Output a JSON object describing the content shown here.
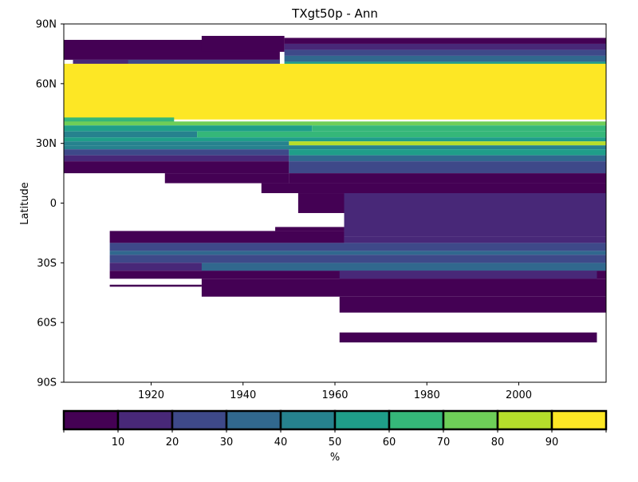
{
  "chart_data": {
    "type": "heatmap",
    "title": "TXgt50p - Ann",
    "xlabel": "",
    "ylabel": "Latitude",
    "xlim": [
      1901,
      2019
    ],
    "ylim": [
      -90,
      90
    ],
    "x_ticks": [
      {
        "value": 1920,
        "label": "1920"
      },
      {
        "value": 1940,
        "label": "1940"
      },
      {
        "value": 1960,
        "label": "1960"
      },
      {
        "value": 1980,
        "label": "1980"
      },
      {
        "value": 2000,
        "label": "2000"
      }
    ],
    "y_ticks": [
      {
        "value": 90,
        "label": "90N"
      },
      {
        "value": 60,
        "label": "60N"
      },
      {
        "value": 30,
        "label": "30N"
      },
      {
        "value": 0,
        "label": "0"
      },
      {
        "value": -30,
        "label": "30S"
      },
      {
        "value": -60,
        "label": "60S"
      },
      {
        "value": -90,
        "label": "90S"
      }
    ],
    "grid": false,
    "colorbar": {
      "label": "%",
      "placement": "bottom",
      "range": [
        0,
        100
      ],
      "bounds": [
        0,
        10,
        20,
        30,
        40,
        50,
        60,
        70,
        80,
        90,
        100
      ],
      "tick_labels": [
        "10",
        "20",
        "30",
        "40",
        "50",
        "60",
        "70",
        "80",
        "90"
      ],
      "colors": [
        "#440154",
        "#482878",
        "#3e4989",
        "#31688e",
        "#26828e",
        "#1f9e89",
        "#35b779",
        "#6ece58",
        "#b5de2b",
        "#fde725"
      ]
    },
    "regions": [
      {
        "lat": [
          72,
          82
        ],
        "years": [
          1901,
          1948
        ],
        "value": 4
      },
      {
        "lat": [
          76,
          84
        ],
        "years": [
          1931,
          1949
        ],
        "value": 4
      },
      {
        "lat": [
          67,
          72
        ],
        "years": [
          1903,
          1948
        ],
        "value": 14
      },
      {
        "lat": [
          67,
          72
        ],
        "years": [
          1915,
          1948
        ],
        "value": 25
      },
      {
        "lat": [
          80,
          83
        ],
        "years": [
          1949,
          2019
        ],
        "value": 6
      },
      {
        "lat": [
          77,
          80
        ],
        "years": [
          1949,
          2019
        ],
        "value": 15
      },
      {
        "lat": [
          74,
          77
        ],
        "years": [
          1949,
          2019
        ],
        "value": 25
      },
      {
        "lat": [
          71,
          74
        ],
        "years": [
          1949,
          2019
        ],
        "value": 35
      },
      {
        "lat": [
          69,
          71
        ],
        "years": [
          1949,
          2019
        ],
        "value": 55
      },
      {
        "lat": [
          67,
          69
        ],
        "years": [
          1901,
          2019
        ],
        "value": 75
      },
      {
        "lat": [
          42,
          70
        ],
        "years": [
          1901,
          2019
        ],
        "value": 95
      },
      {
        "lat": [
          40,
          43
        ],
        "years": [
          1901,
          1925
        ],
        "value": 65
      },
      {
        "lat": [
          39,
          41
        ],
        "years": [
          1901,
          2019
        ],
        "value": 75
      },
      {
        "lat": [
          36,
          39
        ],
        "years": [
          1901,
          1955
        ],
        "value": 55
      },
      {
        "lat": [
          36,
          39
        ],
        "years": [
          1955,
          2019
        ],
        "value": 65
      },
      {
        "lat": [
          33,
          36
        ],
        "years": [
          1901,
          1930
        ],
        "value": 45
      },
      {
        "lat": [
          33,
          36
        ],
        "years": [
          1930,
          2019
        ],
        "value": 65
      },
      {
        "lat": [
          31,
          33
        ],
        "years": [
          1901,
          2019
        ],
        "value": 55
      },
      {
        "lat": [
          29,
          31
        ],
        "years": [
          1901,
          1950
        ],
        "value": 45
      },
      {
        "lat": [
          29,
          31
        ],
        "years": [
          1950,
          2019
        ],
        "value": 85
      },
      {
        "lat": [
          27,
          29
        ],
        "years": [
          1901,
          2019
        ],
        "value": 45
      },
      {
        "lat": [
          24,
          27
        ],
        "years": [
          1901,
          1950
        ],
        "value": 25
      },
      {
        "lat": [
          24,
          27
        ],
        "years": [
          1950,
          2019
        ],
        "value": 55
      },
      {
        "lat": [
          21,
          24
        ],
        "years": [
          1901,
          1950
        ],
        "value": 15
      },
      {
        "lat": [
          21,
          24
        ],
        "years": [
          1950,
          2019
        ],
        "value": 35
      },
      {
        "lat": [
          15,
          21
        ],
        "years": [
          1901,
          1950
        ],
        "value": 4
      },
      {
        "lat": [
          15,
          21
        ],
        "years": [
          1950,
          2019
        ],
        "value": 25
      },
      {
        "lat": [
          10,
          15
        ],
        "years": [
          1923,
          1950
        ],
        "value": 4
      },
      {
        "lat": [
          10,
          15
        ],
        "years": [
          1950,
          2019
        ],
        "value": 4
      },
      {
        "lat": [
          5,
          10
        ],
        "years": [
          1944,
          2019
        ],
        "value": 4
      },
      {
        "lat": [
          -5,
          5
        ],
        "years": [
          1952,
          2019
        ],
        "value": 4
      },
      {
        "lat": [
          -17,
          5
        ],
        "years": [
          1962,
          2019
        ],
        "value": 15
      },
      {
        "lat": [
          -14,
          -12
        ],
        "years": [
          1947,
          1962
        ],
        "value": 4
      },
      {
        "lat": [
          -20,
          -14
        ],
        "years": [
          1911,
          1962
        ],
        "value": 4
      },
      {
        "lat": [
          -20,
          -17
        ],
        "years": [
          1962,
          2019
        ],
        "value": 15
      },
      {
        "lat": [
          -24,
          -20
        ],
        "years": [
          1911,
          2019
        ],
        "value": 25
      },
      {
        "lat": [
          -26,
          -24
        ],
        "years": [
          1911,
          2019
        ],
        "value": 35
      },
      {
        "lat": [
          -30,
          -26
        ],
        "years": [
          1911,
          2019
        ],
        "value": 25
      },
      {
        "lat": [
          -34,
          -30
        ],
        "years": [
          1911,
          2019
        ],
        "value": 15
      },
      {
        "lat": [
          -34,
          -30
        ],
        "years": [
          1931,
          2019
        ],
        "value": 35
      },
      {
        "lat": [
          -38,
          -34
        ],
        "years": [
          1911,
          2019
        ],
        "value": 4
      },
      {
        "lat": [
          -38,
          -34
        ],
        "years": [
          1961,
          2017
        ],
        "value": 15
      },
      {
        "lat": [
          -47,
          -38
        ],
        "years": [
          1931,
          2019
        ],
        "value": 4
      },
      {
        "lat": [
          -42,
          -41
        ],
        "years": [
          1911,
          1931
        ],
        "value": 4
      },
      {
        "lat": [
          -55,
          -47
        ],
        "years": [
          1961,
          2019
        ],
        "value": 4
      },
      {
        "lat": [
          -70,
          -65
        ],
        "years": [
          1961,
          2017
        ],
        "value": 4
      }
    ]
  }
}
